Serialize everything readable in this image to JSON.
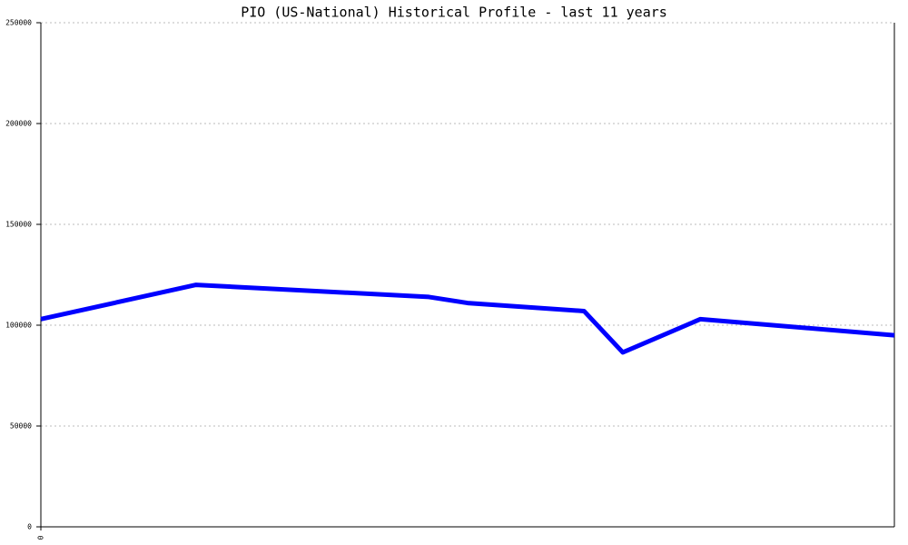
{
  "chart_data": {
    "type": "line",
    "title": "PIO (US-National) Historical Profile - last 11 years",
    "x": [
      0,
      24,
      30,
      60,
      66,
      84,
      90,
      102,
      132
    ],
    "series": [
      {
        "color": "#0000ff",
        "values": [
          103000,
          120000,
          119000,
          114000,
          111000,
          107000,
          86500,
          103000,
          95000
        ]
      }
    ],
    "xlim": [
      0,
      132
    ],
    "xticks": [
      0
    ],
    "ylim": [
      0,
      250000
    ],
    "yticks": [
      0,
      50000,
      100000,
      150000,
      200000,
      250000
    ],
    "grid": true
  }
}
